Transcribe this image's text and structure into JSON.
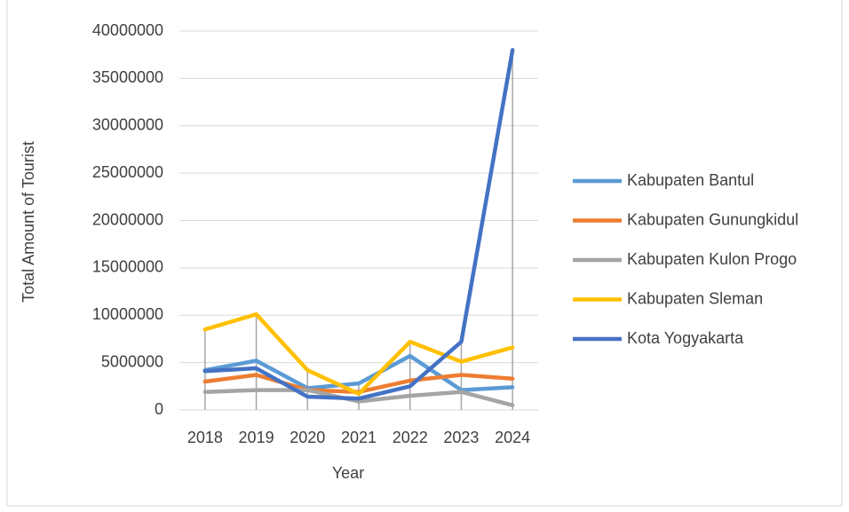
{
  "chart_data": {
    "type": "line",
    "xlabel": "Year",
    "ylabel": "Total Amount of Tourist",
    "categories": [
      "2018",
      "2019",
      "2020",
      "2021",
      "2022",
      "2023",
      "2024"
    ],
    "series": [
      {
        "name": "Kabupaten Bantul",
        "color": "#5b9bd5",
        "values": [
          4200000,
          5200000,
          2300000,
          2800000,
          5700000,
          2100000,
          2400000
        ]
      },
      {
        "name": "Kabupaten Gunungkidul",
        "color": "#ed7d31",
        "values": [
          3000000,
          3700000,
          2100000,
          1900000,
          3100000,
          3700000,
          3300000
        ]
      },
      {
        "name": "Kabupaten Kulon Progo",
        "color": "#a5a5a5",
        "values": [
          1900000,
          2100000,
          2100000,
          900000,
          1500000,
          1900000,
          500000
        ]
      },
      {
        "name": "Kabupaten Sleman",
        "color": "#ffc000",
        "values": [
          8500000,
          10100000,
          4200000,
          1700000,
          7200000,
          5100000,
          6600000
        ]
      },
      {
        "name": "Kota Yogyakarta",
        "color": "#4472c4",
        "values": [
          4100000,
          4400000,
          1400000,
          1200000,
          2500000,
          7200000,
          38000000
        ]
      }
    ],
    "ylim": [
      0,
      40000000
    ],
    "yticks": [
      0,
      5000000,
      10000000,
      15000000,
      20000000,
      25000000,
      30000000,
      35000000,
      40000000
    ],
    "grid": true,
    "drop_lines": true,
    "legend": "right"
  }
}
